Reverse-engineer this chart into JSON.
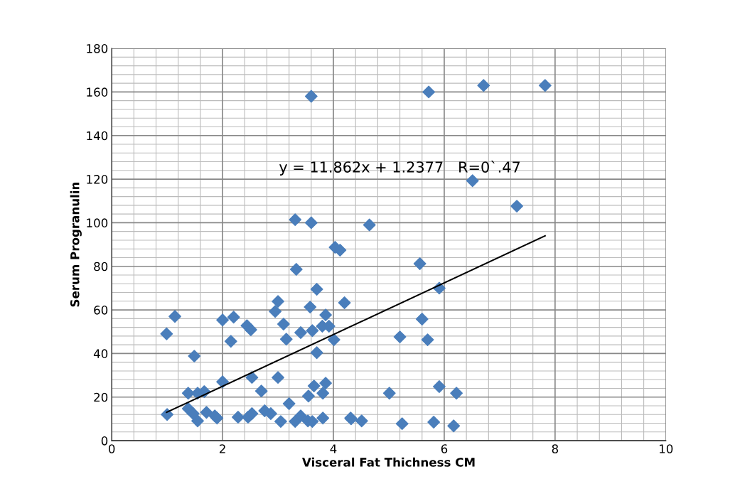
{
  "chart_data": {
    "type": "scatter",
    "xlabel": "Visceral Fat Thichness CM",
    "ylabel": "Serum Progranulin",
    "xlim": [
      0,
      10
    ],
    "ylim": [
      0,
      180
    ],
    "xticks": [
      0,
      2,
      4,
      6,
      8,
      10
    ],
    "yticks": [
      0,
      20,
      40,
      60,
      80,
      100,
      120,
      140,
      160,
      180
    ],
    "grid": true,
    "marker": "diamond",
    "annotations": [
      "y = 11.862x + 1.2377   R=0`.47"
    ],
    "series": [
      {
        "color": "#4a7ebb",
        "x": [
          0.99,
          1.14,
          1.0,
          1.49,
          1.38,
          1.55,
          1.67,
          1.38,
          1.47,
          1.55,
          1.71,
          1.86,
          1.9,
          2.0,
          2.2,
          2.44,
          2.51,
          2.15,
          2.0,
          2.53,
          2.7,
          3.0,
          2.28,
          2.46,
          2.53,
          2.76,
          2.87,
          3.05,
          3.2,
          3.31,
          3.6,
          4.03,
          4.12,
          3.33,
          3.7,
          3.0,
          2.95,
          3.58,
          4.2,
          3.86,
          3.8,
          3.92,
          3.62,
          3.41,
          3.1,
          3.15,
          4.01,
          3.7,
          3.65,
          3.86,
          3.81,
          3.55,
          3.31,
          3.41,
          3.54,
          3.62,
          3.81,
          4.31,
          3.6,
          5.72,
          6.71,
          7.82,
          6.51,
          7.31,
          4.65,
          5.56,
          5.91,
          5.6,
          5.7,
          5.2,
          5.91,
          6.22,
          5.01,
          4.32,
          4.51,
          5.24,
          5.81,
          6.17
        ],
        "values": [
          49,
          57,
          12,
          38.8,
          21.8,
          21.8,
          22.5,
          14.7,
          12.4,
          9.1,
          13,
          11.4,
          10.4,
          55.4,
          56.7,
          52.8,
          50.9,
          45.6,
          27,
          29,
          22.8,
          29,
          10.8,
          10.8,
          12.4,
          13.7,
          12.4,
          8.8,
          17,
          101.4,
          100,
          88.7,
          87.4,
          78.6,
          69.5,
          63.9,
          59.3,
          61.3,
          63.3,
          57.7,
          52.5,
          52.5,
          50.5,
          49.6,
          53.5,
          46.6,
          46.3,
          40.4,
          25.1,
          26.4,
          21.8,
          20.5,
          8.8,
          11.4,
          9.1,
          8.8,
          10.4,
          10.4,
          158,
          160,
          163,
          163,
          119.3,
          107.6,
          99,
          81.2,
          70,
          55.8,
          46.3,
          47.6,
          24.8,
          21.8,
          21.8,
          10,
          9.1,
          7.8,
          8.5,
          6.8
        ]
      },
      {
        "color": "#000000",
        "type": "line",
        "marker": "none",
        "x": [
          0.99,
          7.82
        ],
        "values": [
          13.0,
          94.0
        ]
      }
    ]
  }
}
